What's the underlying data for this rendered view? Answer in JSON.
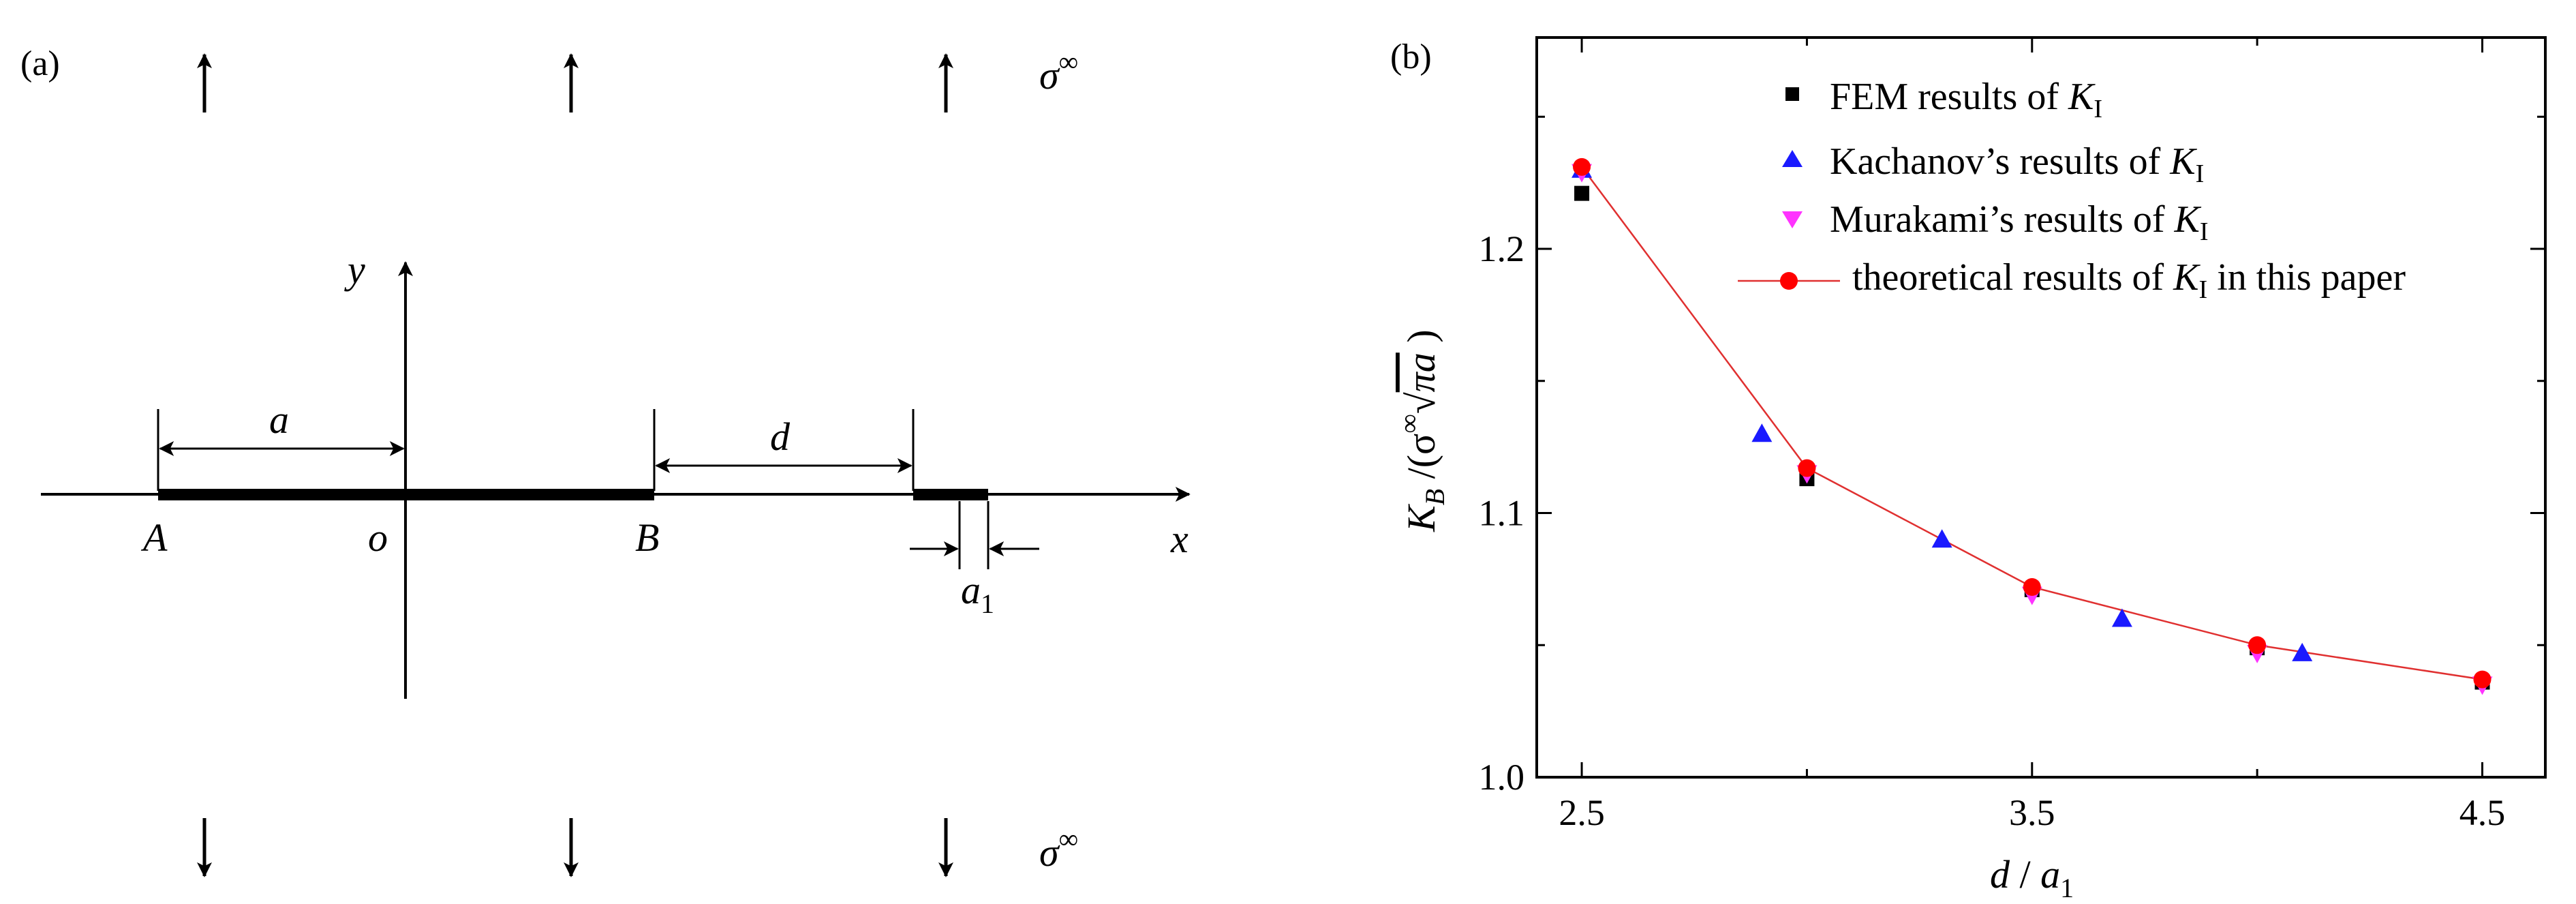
{
  "panel_a": {
    "tag": "(a)",
    "stress_top": {
      "symbol": "σ",
      "superscript": "∞"
    },
    "stress_bottom": {
      "symbol": "σ",
      "superscript": "∞"
    },
    "axis_x": "x",
    "axis_y": "y",
    "origin": "o",
    "point_A": "A",
    "point_B": "B",
    "dim_a": "a",
    "dim_d": "d",
    "dim_a1": {
      "main": "a",
      "sub": "1"
    }
  },
  "panel_b": {
    "tag": "(b)",
    "legend": [
      {
        "pre": "FEM results of ",
        "k": "K",
        "sub": "I",
        "post": ""
      },
      {
        "pre": "Kachanov’s results of ",
        "k": "K",
        "sub": "I",
        "post": ""
      },
      {
        "pre": "Murakami’s results of ",
        "k": "K",
        "sub": "I",
        "post": ""
      },
      {
        "pre": "theoretical results of ",
        "k": "K",
        "sub": "I",
        "post": " in this paper"
      }
    ],
    "xlabel": {
      "d": "d",
      "slash": " / ",
      "a": "a",
      "sub": "1"
    },
    "ylabel": {
      "K": "K",
      "sub": "B",
      "rest": " /(σ",
      "sup": "∞",
      "root": "√",
      "pia": "πa",
      "close": " )"
    }
  },
  "colors": {
    "fem": "#000000",
    "kachanov": "#1a1aff",
    "murakami": "#ff33ff",
    "theory_marker": "#ff0000",
    "theory_line": "#e03030"
  },
  "chart_data": {
    "type": "scatter",
    "xlim": [
      2.4,
      4.64
    ],
    "ylim": [
      1.0,
      1.28
    ],
    "xticks": [
      2.5,
      3.5,
      4.5
    ],
    "xtick_labels": [
      "2.5",
      "3.5",
      "4.5"
    ],
    "yticks": [
      1.0,
      1.1,
      1.2
    ],
    "ytick_labels": [
      "1.0",
      "1.1",
      "1.2"
    ],
    "grid": false,
    "legend_position": "top-right",
    "series": [
      {
        "name": "FEM results of KI",
        "marker": "square",
        "x": [
          2.5,
          3.0,
          3.5,
          4.0,
          4.5
        ],
        "y": [
          1.221,
          1.113,
          1.071,
          1.049,
          1.036
        ]
      },
      {
        "name": "Kachanov’s results of KI",
        "marker": "triangle-up",
        "x": [
          2.5,
          2.9,
          3.3,
          3.7,
          4.1
        ],
        "y": [
          1.23,
          1.13,
          1.09,
          1.06,
          1.047
        ]
      },
      {
        "name": "Murakami’s results of KI",
        "marker": "triangle-down",
        "x": [
          2.5,
          3.0,
          3.5,
          4.0,
          4.5
        ],
        "y": [
          1.229,
          1.115,
          1.069,
          1.047,
          1.035
        ]
      },
      {
        "name": "theoretical results of KI in this paper",
        "marker": "circle",
        "line": true,
        "x": [
          2.5,
          3.0,
          3.5,
          4.0,
          4.5
        ],
        "y": [
          1.231,
          1.117,
          1.072,
          1.05,
          1.037
        ]
      }
    ]
  }
}
